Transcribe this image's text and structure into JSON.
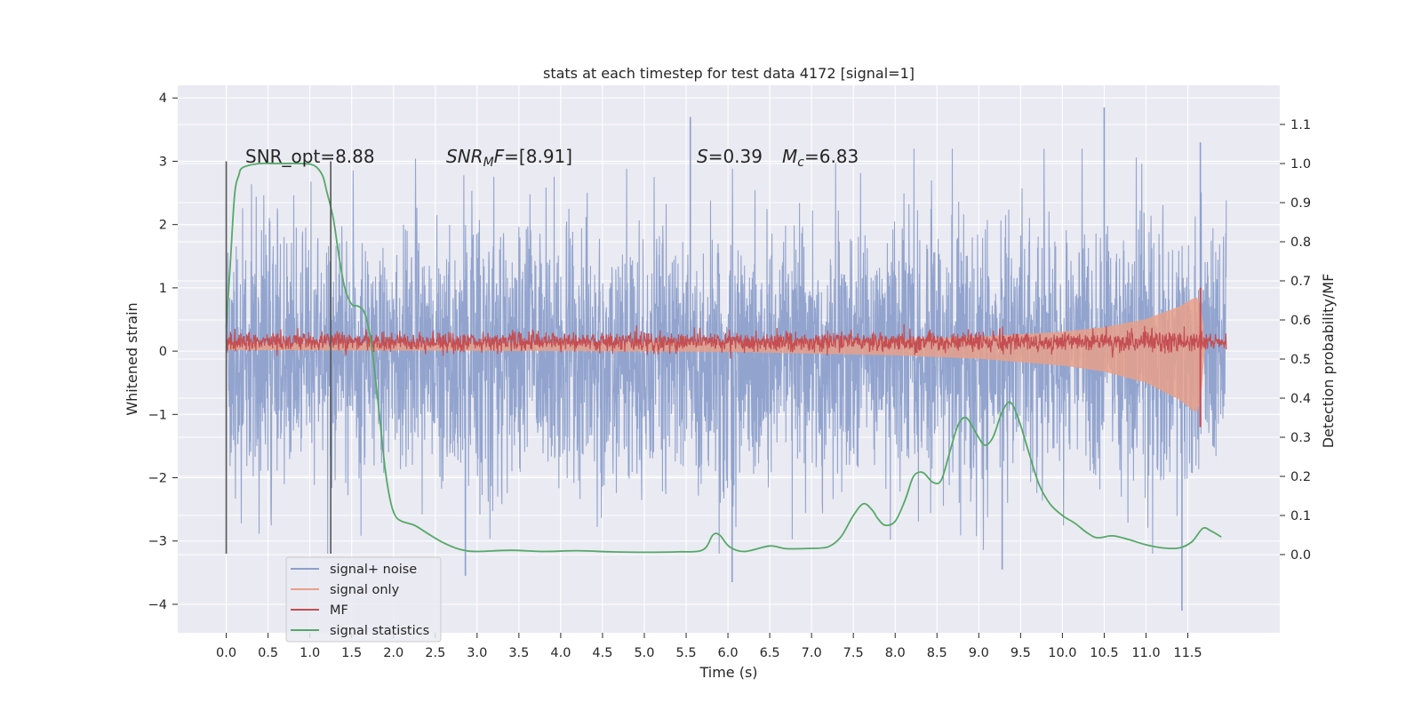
{
  "chart_data": {
    "type": "line",
    "title": "stats at each timestep for test data 4172 [signal=1]",
    "xlabel": "Time (s)",
    "ylabel": "Whitened strain",
    "y2label": "Detection probability/MF",
    "xlim": [
      -0.58,
      12.6
    ],
    "ylim": [
      -4.45,
      4.2
    ],
    "y2lim": [
      -0.2,
      1.2
    ],
    "grid": true,
    "x_ticks": [
      "0.0",
      "0.5",
      "1.0",
      "1.5",
      "2.0",
      "2.5",
      "3.0",
      "3.5",
      "4.0",
      "4.5",
      "5.0",
      "5.5",
      "6.0",
      "6.5",
      "7.0",
      "7.5",
      "8.0",
      "8.5",
      "9.0",
      "9.5",
      "10.0",
      "10.5",
      "11.0",
      "11.5"
    ],
    "y_ticks": [
      "4",
      "3",
      "2",
      "1",
      "0",
      "−1",
      "−2",
      "−3",
      "−4"
    ],
    "y2_ticks": [
      "1.1",
      "1.0",
      "0.9",
      "0.8",
      "0.7",
      "0.6",
      "0.5",
      "0.4",
      "0.3",
      "0.2",
      "0.1",
      "0.0"
    ],
    "annotations": {
      "snr_opt": "SNR_opt=8.88",
      "snr_mf_main": "SNR",
      "snr_mf_sub": "M",
      "snr_mf_rest": "F",
      "snr_mf_value": "=[8.91]",
      "s_sym": "S",
      "s_value": "=0.39",
      "mc_sym": "M",
      "mc_sub": "c",
      "mc_value": "=6.83"
    },
    "vertical_markers": [
      0.0,
      1.25
    ],
    "legend_position": "lower-left",
    "series": [
      {
        "name": "signal+ noise",
        "color": "#8da0cb",
        "description": "whitened strain, noise amplitude",
        "approx_range": [
          -3.6,
          3.7
        ],
        "spike_min": [
          [
            2.86,
            -3.55
          ],
          [
            6.05,
            -3.65
          ],
          [
            9.28,
            -3.45
          ],
          [
            11.43,
            -4.1
          ]
        ],
        "spike_max": [
          [
            5.55,
            3.7
          ],
          [
            10.5,
            3.85
          ],
          [
            11.65,
            3.3
          ]
        ]
      },
      {
        "name": "signal only",
        "color": "#e8a08a",
        "description": "chirp signal, amplitude growing toward merger",
        "envelope": [
          [
            0.0,
            0.02
          ],
          [
            4.0,
            0.03
          ],
          [
            6.0,
            0.04
          ],
          [
            8.0,
            0.08
          ],
          [
            9.0,
            0.12
          ],
          [
            10.0,
            0.2
          ],
          [
            10.5,
            0.27
          ],
          [
            11.0,
            0.4
          ],
          [
            11.4,
            0.6
          ],
          [
            11.6,
            0.75
          ],
          [
            11.65,
            0.62
          ],
          [
            11.7,
            0.0
          ]
        ]
      },
      {
        "name": "MF",
        "color": "#c44e52",
        "description": "matched filter output around 0.15",
        "baseline": 0.15,
        "peak": [
          11.65,
          1.0
        ],
        "trough": [
          11.65,
          -1.2
        ]
      },
      {
        "name": "signal statistics",
        "color": "#55a868",
        "description": "detection probability on right axis",
        "points": [
          [
            0.0,
            0.58
          ],
          [
            0.05,
            0.75
          ],
          [
            0.1,
            0.92
          ],
          [
            0.15,
            0.97
          ],
          [
            0.2,
            0.99
          ],
          [
            0.4,
            1.0
          ],
          [
            0.6,
            1.0
          ],
          [
            0.9,
            1.0
          ],
          [
            1.05,
            0.995
          ],
          [
            1.15,
            0.97
          ],
          [
            1.2,
            0.93
          ],
          [
            1.28,
            0.86
          ],
          [
            1.35,
            0.76
          ],
          [
            1.42,
            0.68
          ],
          [
            1.5,
            0.64
          ],
          [
            1.58,
            0.635
          ],
          [
            1.65,
            0.62
          ],
          [
            1.72,
            0.56
          ],
          [
            1.78,
            0.46
          ],
          [
            1.84,
            0.34
          ],
          [
            1.9,
            0.22
          ],
          [
            1.96,
            0.14
          ],
          [
            2.02,
            0.1
          ],
          [
            2.1,
            0.085
          ],
          [
            2.25,
            0.075
          ],
          [
            2.4,
            0.055
          ],
          [
            2.6,
            0.03
          ],
          [
            2.8,
            0.013
          ],
          [
            3.0,
            0.008
          ],
          [
            3.4,
            0.011
          ],
          [
            3.8,
            0.008
          ],
          [
            4.2,
            0.01
          ],
          [
            4.6,
            0.007
          ],
          [
            5.0,
            0.006
          ],
          [
            5.4,
            0.007
          ],
          [
            5.7,
            0.012
          ],
          [
            5.82,
            0.05
          ],
          [
            5.9,
            0.05
          ],
          [
            6.02,
            0.02
          ],
          [
            6.2,
            0.008
          ],
          [
            6.5,
            0.022
          ],
          [
            6.7,
            0.015
          ],
          [
            7.0,
            0.016
          ],
          [
            7.2,
            0.02
          ],
          [
            7.35,
            0.045
          ],
          [
            7.5,
            0.1
          ],
          [
            7.62,
            0.13
          ],
          [
            7.72,
            0.115
          ],
          [
            7.8,
            0.09
          ],
          [
            7.88,
            0.075
          ],
          [
            8.0,
            0.085
          ],
          [
            8.12,
            0.14
          ],
          [
            8.22,
            0.2
          ],
          [
            8.33,
            0.21
          ],
          [
            8.45,
            0.185
          ],
          [
            8.55,
            0.19
          ],
          [
            8.65,
            0.26
          ],
          [
            8.75,
            0.33
          ],
          [
            8.85,
            0.35
          ],
          [
            8.97,
            0.31
          ],
          [
            9.07,
            0.28
          ],
          [
            9.17,
            0.3
          ],
          [
            9.27,
            0.36
          ],
          [
            9.37,
            0.39
          ],
          [
            9.47,
            0.35
          ],
          [
            9.6,
            0.26
          ],
          [
            9.72,
            0.18
          ],
          [
            9.85,
            0.13
          ],
          [
            10.0,
            0.1
          ],
          [
            10.15,
            0.08
          ],
          [
            10.3,
            0.055
          ],
          [
            10.42,
            0.043
          ],
          [
            10.6,
            0.048
          ],
          [
            10.8,
            0.038
          ],
          [
            11.0,
            0.025
          ],
          [
            11.2,
            0.017
          ],
          [
            11.4,
            0.017
          ],
          [
            11.55,
            0.033
          ],
          [
            11.68,
            0.067
          ],
          [
            11.78,
            0.06
          ],
          [
            11.9,
            0.045
          ]
        ]
      }
    ]
  }
}
